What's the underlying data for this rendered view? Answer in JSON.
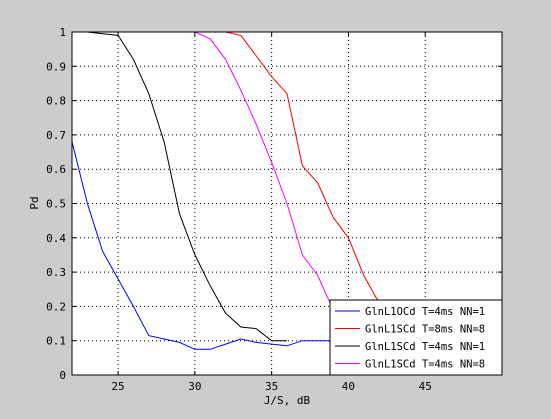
{
  "chart_data": {
    "type": "line",
    "title": "",
    "xlabel": "J/S, dB",
    "ylabel": "Pd",
    "xlim": [
      22,
      50
    ],
    "ylim": [
      0,
      1
    ],
    "x_ticks": [
      "25",
      "30",
      "35",
      "40",
      "45"
    ],
    "y_ticks": [
      "0",
      "0.1",
      "0.2",
      "0.3",
      "0.4",
      "0.5",
      "0.6",
      "0.7",
      "0.8",
      "0.9",
      "1"
    ],
    "grid": true,
    "legend_position": "bottom-right",
    "series": [
      {
        "name": "GlnL1OCd T=4ms NN=1",
        "color": "#0000ff",
        "points": [
          [
            22,
            0.68
          ],
          [
            23,
            0.5
          ],
          [
            24,
            0.36
          ],
          [
            25,
            0.28
          ],
          [
            26,
            0.2
          ],
          [
            27,
            0.115
          ],
          [
            28,
            0.105
          ],
          [
            29,
            0.095
          ],
          [
            30,
            0.075
          ],
          [
            31,
            0.075
          ],
          [
            32,
            0.09
          ],
          [
            33,
            0.105
          ],
          [
            34,
            0.095
          ],
          [
            35,
            0.09
          ],
          [
            36,
            0.085
          ],
          [
            37,
            0.1
          ],
          [
            38,
            0.1
          ],
          [
            39,
            0.1
          ]
        ]
      },
      {
        "name": "GlnL1SCd T=8ms NN=8",
        "color": "#ff0000",
        "points": [
          [
            22,
            1
          ],
          [
            30,
            1
          ],
          [
            32,
            1
          ],
          [
            33,
            0.99
          ],
          [
            34,
            0.93
          ],
          [
            35,
            0.87
          ],
          [
            36,
            0.82
          ],
          [
            37,
            0.61
          ],
          [
            38,
            0.56
          ],
          [
            39,
            0.46
          ],
          [
            40,
            0.4
          ],
          [
            41,
            0.29
          ],
          [
            42,
            0.21
          ],
          [
            43,
            0.12
          ]
        ]
      },
      {
        "name": "GlnL1SCd T=4ms NN=1",
        "color": "#000000",
        "points": [
          [
            22,
            1
          ],
          [
            23,
            1
          ],
          [
            24,
            0.995
          ],
          [
            25,
            0.99
          ],
          [
            26,
            0.92
          ],
          [
            27,
            0.82
          ],
          [
            28,
            0.68
          ],
          [
            29,
            0.47
          ],
          [
            30,
            0.35
          ],
          [
            31,
            0.26
          ],
          [
            32,
            0.18
          ],
          [
            33,
            0.14
          ],
          [
            34,
            0.135
          ],
          [
            35,
            0.1
          ],
          [
            36,
            0.1
          ]
        ]
      },
      {
        "name": "GlnL1SCd T=4ms NN=8",
        "color": "#ff00ff",
        "points": [
          [
            22,
            1
          ],
          [
            30,
            1
          ],
          [
            31,
            0.98
          ],
          [
            32,
            0.92
          ],
          [
            33,
            0.83
          ],
          [
            34,
            0.73
          ],
          [
            35,
            0.62
          ],
          [
            36,
            0.5
          ],
          [
            37,
            0.35
          ],
          [
            38,
            0.29
          ],
          [
            39,
            0.19
          ]
        ]
      }
    ]
  }
}
